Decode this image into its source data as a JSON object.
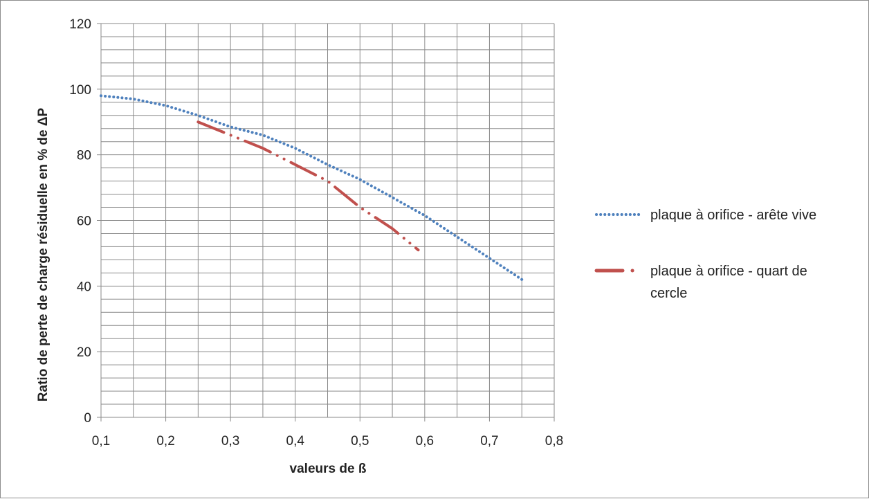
{
  "chart_data": {
    "type": "line",
    "title": "",
    "xlabel": "valeurs de ß",
    "ylabel": "Ratio de perte de charge résiduelle en % de ΔP",
    "xlim": [
      0.1,
      0.8
    ],
    "ylim": [
      0,
      120
    ],
    "x_ticks": [
      "0,1",
      "0,2",
      "0,3",
      "0,4",
      "0,5",
      "0,6",
      "0,7",
      "0,8"
    ],
    "y_ticks": [
      "0",
      "20",
      "40",
      "60",
      "80",
      "100",
      "120"
    ],
    "grid": true,
    "legend_position": "right",
    "series": [
      {
        "name": "plaque à orifice - arête vive",
        "color": "#4f81bd",
        "style": "dotted",
        "x": [
          0.1,
          0.15,
          0.2,
          0.25,
          0.3,
          0.35,
          0.4,
          0.45,
          0.5,
          0.55,
          0.6,
          0.65,
          0.7,
          0.75
        ],
        "y": [
          98,
          97,
          95,
          92,
          88.5,
          86,
          82,
          77,
          72.5,
          67,
          61.5,
          55,
          48.5,
          42
        ]
      },
      {
        "name": "plaque à orifice - quart de cercle",
        "color": "#c0504d",
        "style": "dash-dot",
        "x": [
          0.25,
          0.3,
          0.35,
          0.4,
          0.45,
          0.5,
          0.55,
          0.59
        ],
        "y": [
          90,
          86,
          82,
          77,
          72,
          64,
          57.5,
          51
        ]
      }
    ]
  }
}
